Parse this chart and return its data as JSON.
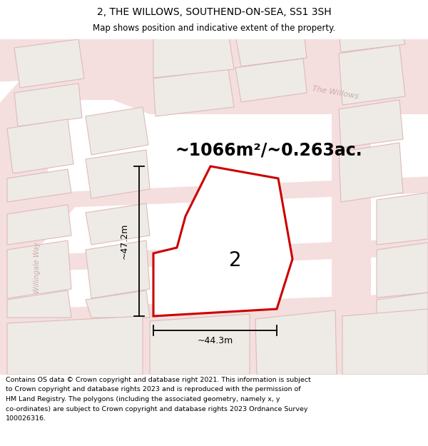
{
  "title_line1": "2, THE WILLOWS, SOUTHEND-ON-SEA, SS1 3SH",
  "title_line2": "Map shows position and indicative extent of the property.",
  "area_text": "~1066m²/~0.263ac.",
  "label_number": "2",
  "dim_vertical": "~47.2m",
  "dim_horizontal": "~44.3m",
  "road_label": "The Willows",
  "road_label2": "Willingale Way",
  "footer_lines": [
    "Contains OS data © Crown copyright and database right 2021. This information is subject",
    "to Crown copyright and database rights 2023 and is reproduced with the permission of",
    "HM Land Registry. The polygons (including the associated geometry, namely x, y",
    "co-ordinates) are subject to Crown copyright and database rights 2023 Ordnance Survey",
    "100026316."
  ],
  "map_bg": "#f7f5f3",
  "road_fill": "#f5dede",
  "road_edge": "#e8b8b8",
  "building_fill": "#eeebe6",
  "building_edge": "#ddbbbb",
  "plot_edge": "#cc0000",
  "plot_fill": "#ffffff",
  "title_fontsize": 10,
  "subtitle_fontsize": 8.5,
  "area_fontsize": 17,
  "number_fontsize": 20,
  "dim_fontsize": 9,
  "footer_fontsize": 6.8,
  "road_text_color": "#ccaaaa",
  "road_text_size": 8
}
